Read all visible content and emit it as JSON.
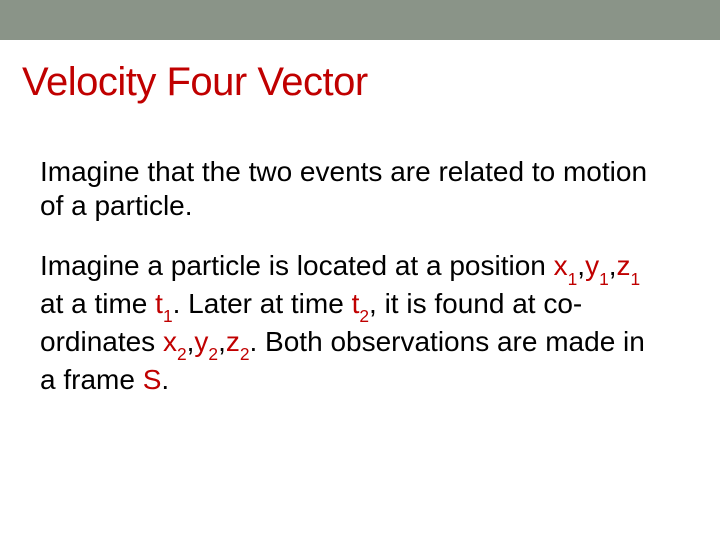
{
  "colors": {
    "band": "#8a9488",
    "title": "#c00000",
    "body_text": "#000000",
    "highlight": "#c00000",
    "background": "#ffffff"
  },
  "title": "Velocity Four Vector",
  "para1": "Imagine that the two events are related to motion of a particle.",
  "p2_a": "Imagine a particle is located at a position ",
  "p2_x1_base": "x",
  "p2_x1_sub": "1",
  "p2_c1": ",",
  "p2_y1_base": "y",
  "p2_y1_sub": "1",
  "p2_c2": ",",
  "p2_z1_base": "z",
  "p2_z1_sub": "1",
  "p2_b": " at a time ",
  "p2_t1_base": "t",
  "p2_t1_sub": "1",
  "p2_c": ". Later at time ",
  "p2_t2_base": "t",
  "p2_t2_sub": "2",
  "p2_d": ", it is found at co-ordinates ",
  "p2_x2_base": "x",
  "p2_x2_sub": "2",
  "p2_c3": ",",
  "p2_y2_base": "y",
  "p2_y2_sub": "2",
  "p2_c4": ",",
  "p2_z2_base": "z",
  "p2_z2_sub": "2",
  "p2_e": ". Both observations are made in a frame ",
  "p2_S": "S",
  "p2_f": "."
}
